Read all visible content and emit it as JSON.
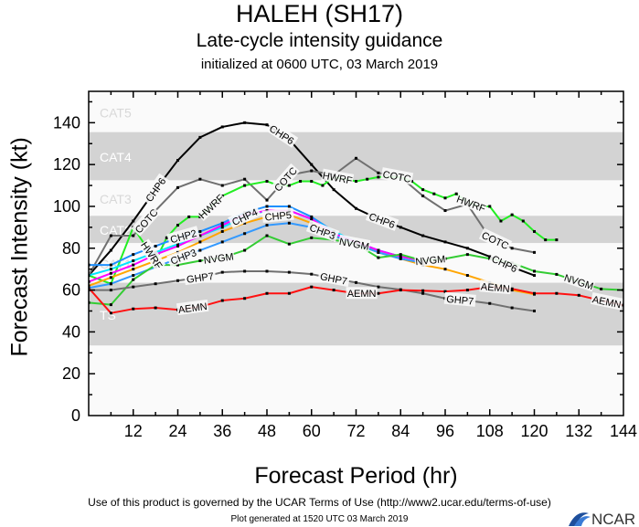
{
  "header": {
    "title": "HALEH (SH17)",
    "subtitle": "Late-cycle intensity guidance",
    "initialized": "initialized at 0600 UTC, 03 March 2019"
  },
  "footer": {
    "terms": "Use of this product is governed by the UCAR Terms of Use (http://www2.ucar.edu/terms-of-use)",
    "generated": "Plot generated at 1520 UTC   03 March 2019",
    "logo_text": "NCAR"
  },
  "chart_data": {
    "type": "line",
    "title": "HALEH (SH17)",
    "xlabel": "Forecast Period (hr)",
    "ylabel": "Forecast Intensity (kt)",
    "xlim": [
      0,
      144
    ],
    "ylim": [
      0,
      155
    ],
    "x_ticks": [
      12,
      24,
      36,
      48,
      60,
      72,
      84,
      96,
      108,
      120,
      132,
      144
    ],
    "y_ticks": [
      0,
      20,
      40,
      60,
      80,
      100,
      120,
      140
    ],
    "grid": false,
    "intensity_bands": [
      {
        "label": "TS",
        "min": 34,
        "max": 63,
        "shaded": true
      },
      {
        "label": "CAT1",
        "min": 64,
        "max": 82,
        "shaded": false
      },
      {
        "label": "CAT2",
        "min": 83,
        "max": 95,
        "shaded": true
      },
      {
        "label": "CAT3",
        "min": 96,
        "max": 112,
        "shaded": false
      },
      {
        "label": "CAT4",
        "min": 113,
        "max": 135,
        "shaded": true
      },
      {
        "label": "CAT5",
        "min": 136,
        "max": 155,
        "shaded": false
      }
    ],
    "series": [
      {
        "name": "CHP6",
        "color": "#000000",
        "label_hours": [
          18,
          52,
          79,
          112
        ],
        "x": [
          0,
          6,
          12,
          18,
          24,
          30,
          36,
          42,
          48,
          54,
          60,
          66,
          72,
          78,
          84,
          90,
          96,
          102,
          108,
          114,
          120
        ],
        "y": [
          67,
          79,
          93,
          108,
          122,
          133,
          138,
          140,
          139,
          132,
          120,
          108,
          99,
          94,
          90,
          86,
          83,
          80,
          76,
          71,
          67
        ]
      },
      {
        "name": "COTC",
        "color": "#707070",
        "label_hours": [
          20,
          53,
          83,
          108
        ],
        "x": [
          0,
          6,
          12,
          18,
          24,
          30,
          36,
          42,
          48,
          54,
          60,
          66,
          72,
          78,
          84,
          90,
          96,
          102,
          108,
          114,
          120
        ],
        "y": [
          67,
          86,
          86,
          98,
          109,
          113,
          110,
          113,
          103,
          115,
          117,
          115,
          123,
          116,
          114,
          105,
          98,
          101,
          85,
          80,
          78
        ]
      },
      {
        "name": "HWRF",
        "color": "#22ee22",
        "label_hours": [
          14,
          33,
          67,
          103
        ],
        "x": [
          0,
          6,
          12,
          18,
          21,
          24,
          27,
          30,
          36,
          42,
          48,
          51,
          54,
          57,
          60,
          63,
          66,
          72,
          75,
          78,
          84,
          87,
          90,
          93,
          96,
          99,
          102,
          105,
          108,
          111,
          114,
          117,
          120,
          123,
          126
        ],
        "y": [
          67,
          63,
          90,
          74,
          85,
          91,
          95,
          95,
          105,
          110,
          112,
          110,
          110,
          112,
          112,
          110,
          114,
          112,
          113,
          114,
          114,
          112,
          108,
          106,
          104,
          106,
          102,
          100,
          100,
          93,
          96,
          93,
          88,
          84,
          84
        ]
      },
      {
        "name": "CHP2",
        "color": "#1e90ff",
        "label_hours": [
          24
        ],
        "x": [
          0,
          6,
          12,
          18,
          24,
          30,
          36,
          42,
          48,
          54,
          60,
          66,
          72,
          78,
          84,
          90
        ],
        "y": [
          72,
          72,
          77,
          81,
          85,
          88,
          92,
          97,
          100,
          100,
          95,
          88,
          83,
          79,
          76,
          74
        ]
      },
      {
        "name": "CHP4",
        "color": "#00e5ff",
        "label_hours": [
          24
        ],
        "x": [
          0,
          6,
          12,
          18,
          24,
          30,
          36,
          42,
          48,
          54,
          60,
          66,
          72,
          78,
          84,
          90
        ],
        "y": [
          67,
          70,
          74,
          78,
          82,
          86,
          90,
          95,
          98,
          98,
          94,
          88,
          83,
          79,
          76,
          74
        ]
      },
      {
        "name": "",
        "color": "#ff00ff",
        "label_hours": [],
        "x": [
          0,
          6,
          12,
          18,
          24,
          30,
          36,
          42,
          48,
          54,
          60,
          66,
          72,
          78,
          84,
          90
        ],
        "y": [
          64,
          68,
          72,
          77,
          81,
          86,
          91,
          96,
          98,
          98,
          94,
          87,
          83,
          79,
          76,
          74
        ]
      },
      {
        "name": "CHP5",
        "color": "#ffa500",
        "label_hours": [
          24
        ],
        "x": [
          0,
          6,
          12,
          18,
          24,
          30,
          36,
          42,
          48,
          54,
          60,
          66,
          72,
          78,
          84,
          90,
          96,
          102,
          108,
          114,
          120
        ],
        "y": [
          62,
          66,
          70,
          74,
          78,
          83,
          88,
          92,
          95,
          96,
          92,
          86,
          82,
          78,
          75,
          72,
          70,
          67,
          63.6,
          60,
          58
        ]
      },
      {
        "name": "CHP3",
        "color": "#3399ff",
        "label_hours": [
          24,
          63
        ],
        "x": [
          0,
          6,
          12,
          18,
          24,
          30,
          36,
          42,
          48,
          54,
          60,
          66,
          72,
          78,
          84,
          90
        ],
        "y": [
          61,
          63,
          67,
          71,
          75,
          79,
          83,
          87,
          91,
          92,
          90,
          86,
          82,
          78,
          75,
          73
        ]
      },
      {
        "name": "NVGM",
        "color": "#33cc33",
        "label_hours": [
          29,
          64,
          92,
          132
        ],
        "x": [
          0,
          6,
          12,
          18,
          24,
          30,
          36,
          42,
          48,
          54,
          60,
          66,
          72,
          78,
          84,
          90,
          96,
          102,
          108,
          114,
          120,
          126,
          132,
          138,
          144
        ],
        "y": [
          54,
          53,
          65,
          72,
          72,
          74,
          75.5,
          79,
          86,
          82,
          85,
          84,
          82,
          75.5,
          77,
          74,
          75,
          77,
          75,
          73,
          69,
          67.5,
          64,
          60.5,
          60
        ]
      },
      {
        "name": "GHP7",
        "color": "#707070",
        "label_hours": [
          30,
          66,
          100
        ],
        "x": [
          0,
          6,
          12,
          18,
          24,
          30,
          36,
          42,
          48,
          54,
          60,
          66,
          72,
          78,
          84,
          90,
          96,
          102,
          108,
          114,
          120
        ],
        "y": [
          60,
          60,
          61.5,
          63,
          64.5,
          66,
          68.5,
          69,
          69,
          68.5,
          67.6,
          65.5,
          63.6,
          61.5,
          60.2,
          58.4,
          56,
          55,
          53.6,
          51.5,
          50
        ]
      },
      {
        "name": "AEMN",
        "color": "#ff1111",
        "label_hours": [
          28,
          66,
          105,
          138
        ],
        "x": [
          0,
          6,
          12,
          18,
          24,
          30,
          36,
          42,
          48,
          54,
          60,
          66,
          72,
          78,
          84,
          90,
          96,
          102,
          108,
          114,
          120,
          126,
          132,
          138,
          144
        ],
        "y": [
          61,
          49,
          51,
          51.5,
          50.6,
          52,
          55,
          56,
          58.4,
          58.4,
          61.5,
          60,
          58.4,
          58.4,
          60,
          59.7,
          59.3,
          60,
          61.5,
          60.6,
          58.4,
          58.4,
          57.5,
          55,
          52.8
        ]
      }
    ]
  }
}
